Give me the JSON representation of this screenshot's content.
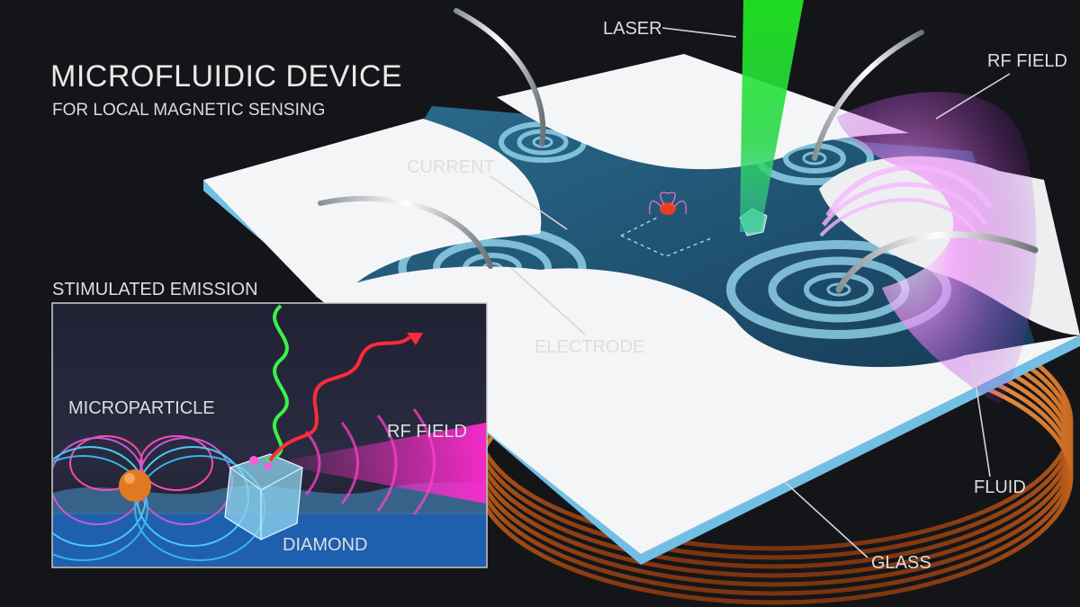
{
  "title": "MICROFLUIDIC DEVICE",
  "subtitle": "FOR LOCAL MAGNETIC SENSING",
  "labels": {
    "laser": "LASER",
    "rf_field": "RF FIELD",
    "current": "CURRENT",
    "electrode": "ELECTRODE",
    "fluid": "FLUID",
    "glass": "GLASS"
  },
  "inset": {
    "title": "STIMULATED EMISSION",
    "microparticle": "MICROPARTICLE",
    "rf_field": "RF FIELD",
    "diamond": "DIAMOND"
  },
  "colors": {
    "background": "#141518",
    "laser": "#2cf02c",
    "rf_field": "#e040f0",
    "fluid": "#1e4f78",
    "electrode_rings": "#9fe0f5",
    "glass_edge": "#7cc4e8",
    "coil": "#d8782a",
    "microparticle": "#e07a20",
    "diamond_layer": "#1f5fb0",
    "emission": "#ff2a3a"
  }
}
